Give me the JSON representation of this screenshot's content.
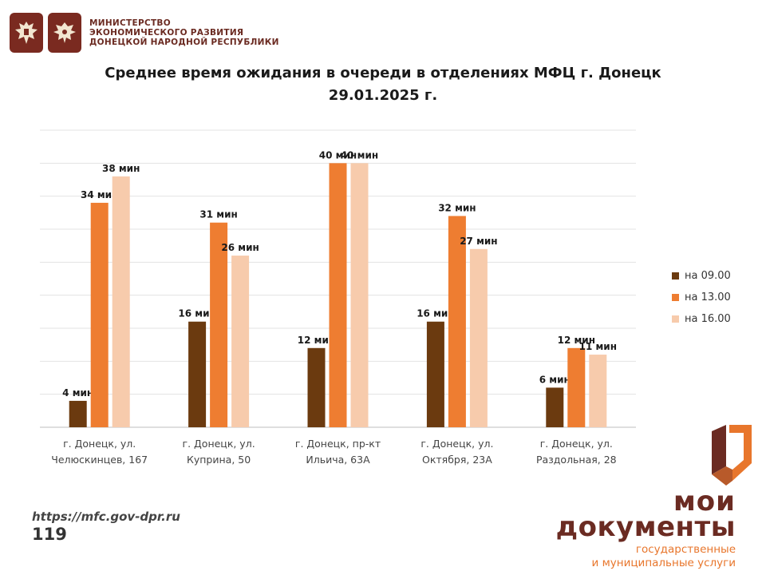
{
  "header": {
    "ministry_lines": [
      "МИНИСТЕРСТВО",
      "ЭКОНОМИЧЕСКОГО РАЗВИТИЯ",
      "ДОНЕЦКОЙ НАРОДНОЙ РЕСПУБЛИКИ"
    ]
  },
  "chart_data": {
    "type": "bar",
    "title_lines": [
      "Среднее время ожидания в очереди в отделениях МФЦ г. Донецк",
      "29.01.2025 г."
    ],
    "categories": [
      [
        "г. Донецк, ул.",
        "Челюскинцев, 167"
      ],
      [
        "г. Донецк, ул.",
        "Куприна, 50"
      ],
      [
        "г. Донецк, пр-кт",
        "Ильича, 63А"
      ],
      [
        "г. Донецк, ул.",
        "Октября, 23А"
      ],
      [
        "г. Донецк, ул.",
        "Раздольная, 28"
      ]
    ],
    "series": [
      {
        "name": "на 09.00",
        "color": "#6b3a0f",
        "values": [
          4,
          16,
          12,
          16,
          6
        ]
      },
      {
        "name": "на 13.00",
        "color": "#ee7d31",
        "values": [
          34,
          31,
          40,
          32,
          12
        ]
      },
      {
        "name": "на 16.00",
        "color": "#f7cbac",
        "values": [
          38,
          26,
          40,
          27,
          11
        ]
      }
    ],
    "value_suffix": " мин",
    "ylim": [
      0,
      45
    ],
    "grid": true,
    "legend": "right"
  },
  "footer": {
    "url": "https://mfc.gov-dpr.ru",
    "page_number": "119"
  },
  "brand": {
    "line1": "мои",
    "line2": "документы",
    "sub1": "государственные",
    "sub2": "и муниципальные услуги"
  }
}
